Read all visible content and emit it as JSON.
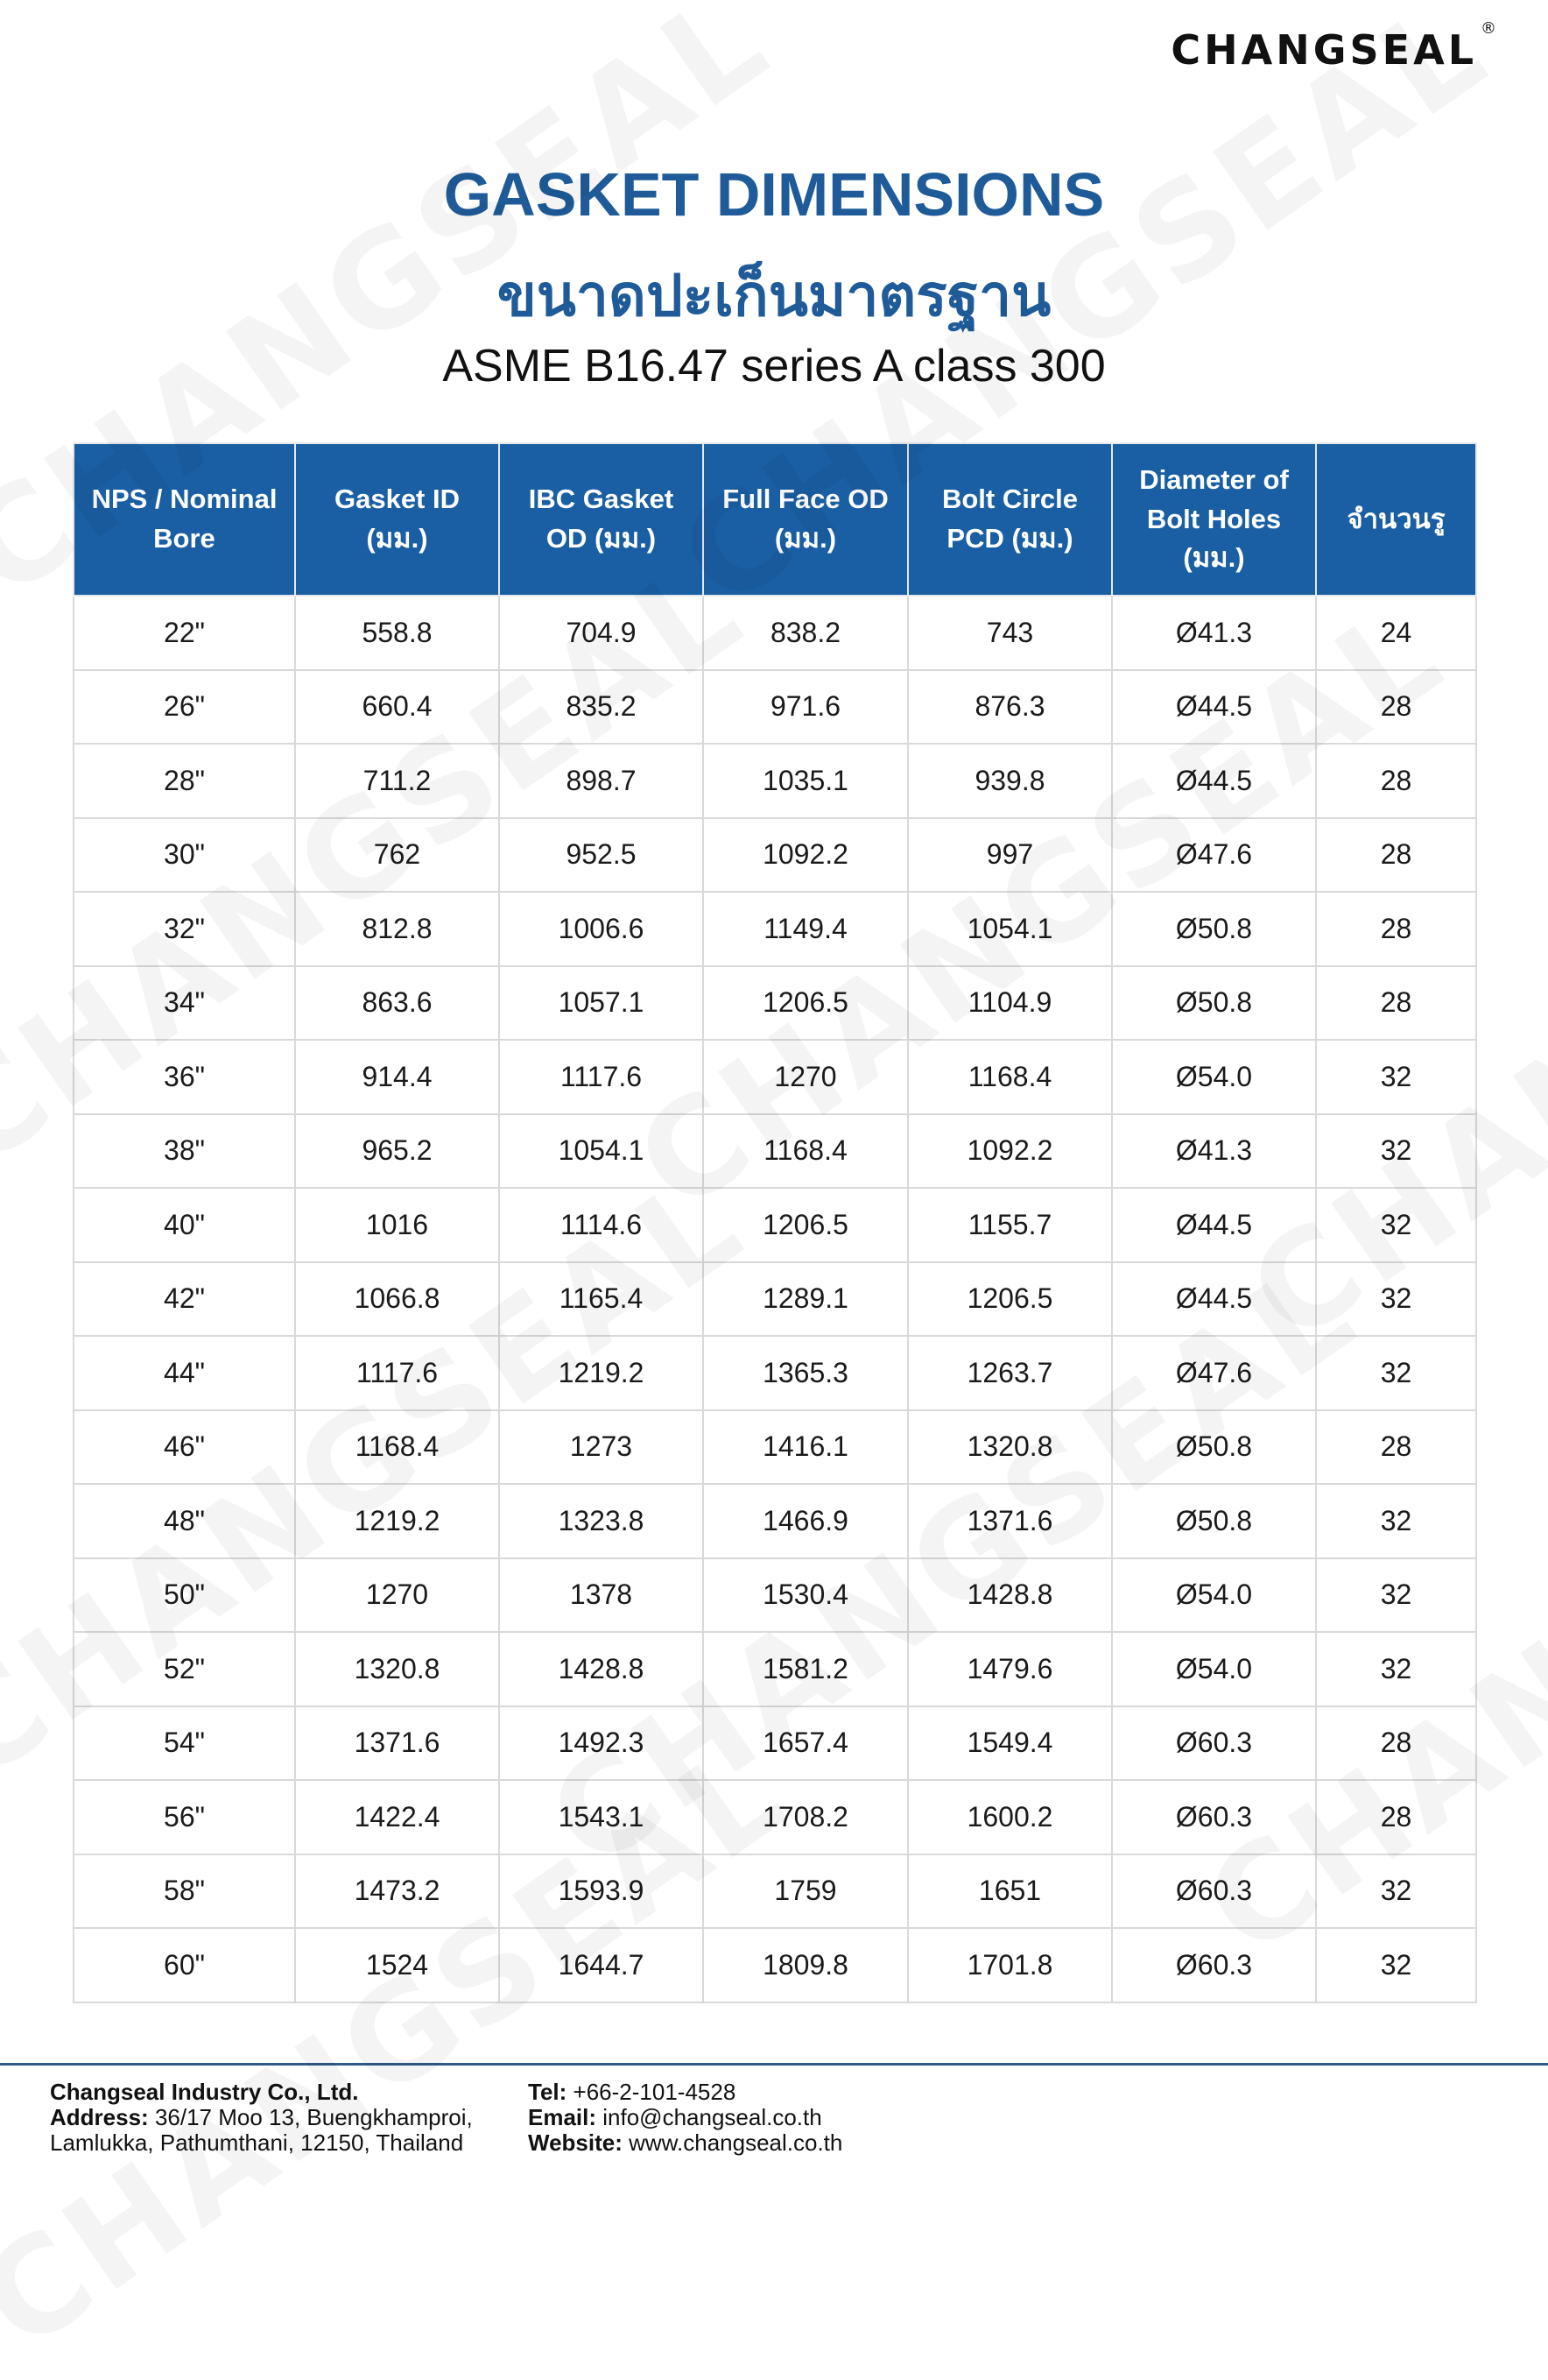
{
  "brand": {
    "logo_text": "CHANGSEAL",
    "registered_mark": "®",
    "watermark_text": "CHANGSEAL"
  },
  "header": {
    "title": "GASKET DIMENSIONS",
    "title_thai": "ขนาดปะเก็นมาตรฐาน",
    "subtitle": "ASME B16.47 series A class 300"
  },
  "colors": {
    "accent": "#1f5b99",
    "header_bg": "#1a5fa3"
  },
  "table": {
    "columns": [
      "NPS / Nominal Bore",
      "Gasket ID (มม.)",
      "IBC Gasket OD (มม.)",
      "Full Face OD (มม.)",
      "Bolt Circle PCD (มม.)",
      "Diameter of Bolt Holes (มม.)",
      "จำนวนรู"
    ],
    "rows": [
      [
        "22\"",
        "558.8",
        "704.9",
        "838.2",
        "743",
        "Ø41.3",
        "24"
      ],
      [
        "26\"",
        "660.4",
        "835.2",
        "971.6",
        "876.3",
        "Ø44.5",
        "28"
      ],
      [
        "28\"",
        "711.2",
        "898.7",
        "1035.1",
        "939.8",
        "Ø44.5",
        "28"
      ],
      [
        "30\"",
        "762",
        "952.5",
        "1092.2",
        "997",
        "Ø47.6",
        "28"
      ],
      [
        "32\"",
        "812.8",
        "1006.6",
        "1149.4",
        "1054.1",
        "Ø50.8",
        "28"
      ],
      [
        "34\"",
        "863.6",
        "1057.1",
        "1206.5",
        "1104.9",
        "Ø50.8",
        "28"
      ],
      [
        "36\"",
        "914.4",
        "1117.6",
        "1270",
        "1168.4",
        "Ø54.0",
        "32"
      ],
      [
        "38\"",
        "965.2",
        "1054.1",
        "1168.4",
        "1092.2",
        "Ø41.3",
        "32"
      ],
      [
        "40\"",
        "1016",
        "1114.6",
        "1206.5",
        "1155.7",
        "Ø44.5",
        "32"
      ],
      [
        "42\"",
        "1066.8",
        "1165.4",
        "1289.1",
        "1206.5",
        "Ø44.5",
        "32"
      ],
      [
        "44\"",
        "1117.6",
        "1219.2",
        "1365.3",
        "1263.7",
        "Ø47.6",
        "32"
      ],
      [
        "46\"",
        "1168.4",
        "1273",
        "1416.1",
        "1320.8",
        "Ø50.8",
        "28"
      ],
      [
        "48\"",
        "1219.2",
        "1323.8",
        "1466.9",
        "1371.6",
        "Ø50.8",
        "32"
      ],
      [
        "50\"",
        "1270",
        "1378",
        "1530.4",
        "1428.8",
        "Ø54.0",
        "32"
      ],
      [
        "52\"",
        "1320.8",
        "1428.8",
        "1581.2",
        "1479.6",
        "Ø54.0",
        "32"
      ],
      [
        "54\"",
        "1371.6",
        "1492.3",
        "1657.4",
        "1549.4",
        "Ø60.3",
        "28"
      ],
      [
        "56\"",
        "1422.4",
        "1543.1",
        "1708.2",
        "1600.2",
        "Ø60.3",
        "28"
      ],
      [
        "58\"",
        "1473.2",
        "1593.9",
        "1759",
        "1651",
        "Ø60.3",
        "32"
      ],
      [
        "60\"",
        "1524",
        "1644.7",
        "1809.8",
        "1701.8",
        "Ø60.3",
        "32"
      ]
    ]
  },
  "footer": {
    "company": "Changseal Industry Co., Ltd.",
    "address_label": "Address:",
    "address_line1": "36/17 Moo 13, Buengkhamproi,",
    "address_line2": "Lamlukka, Pathumthani, 12150, Thailand",
    "tel_label": "Tel:",
    "tel": "+66-2-101-4528",
    "email_label": "Email:",
    "email": "info@changseal.co.th",
    "website_label": "Website:",
    "website": "www.changseal.co.th"
  }
}
